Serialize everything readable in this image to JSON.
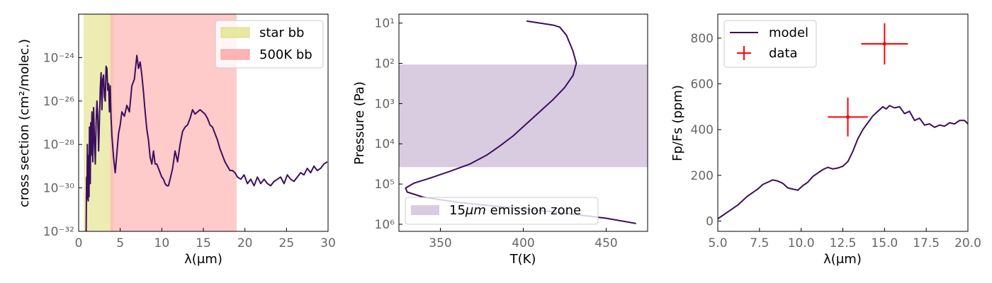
{
  "colors": {
    "line": "#3b0f5e",
    "star_band": "#e8e8a0",
    "bb500_band": "#ffb3b3",
    "emission_zone": "#d9cbe0",
    "data": "#ff0000",
    "tick_label": "#666666"
  },
  "chart_data": [
    {
      "type": "line",
      "xlabel": "λ(μm)",
      "ylabel": "cross section (cm²/molec.)",
      "xlim": [
        0,
        30
      ],
      "ylim": [
        1e-32,
        1e-22
      ],
      "yscale": "log",
      "xticks": [
        0,
        5,
        10,
        15,
        20,
        25,
        30
      ],
      "xtick_labels": [
        "0",
        "5",
        "10",
        "15",
        "20",
        "25",
        "30"
      ],
      "yticks": [
        -32,
        -30,
        -28,
        -26,
        -24
      ],
      "ytick_labels": [
        "10⁻³²",
        "10⁻³⁰",
        "10⁻²⁸",
        "10⁻²⁶",
        "10⁻²⁴"
      ],
      "legend_position": "top-right",
      "bands": [
        {
          "name": "star bb",
          "x": [
            0.6,
            4.2
          ],
          "color": "#e8e8a0"
        },
        {
          "name": "500K bb",
          "x": [
            3.8,
            19.0
          ],
          "color": "#ffb3b3"
        }
      ],
      "series": [
        {
          "log10_y": true,
          "x": [
            0.9,
            0.95,
            1.0,
            1.05,
            1.1,
            1.15,
            1.2,
            1.25,
            1.3,
            1.35,
            1.4,
            1.45,
            1.5,
            1.6,
            1.7,
            1.8,
            1.9,
            2.0,
            2.1,
            2.2,
            2.3,
            2.4,
            2.5,
            2.6,
            2.7,
            2.8,
            2.9,
            3.0,
            3.1,
            3.2,
            3.3,
            3.4,
            3.5,
            3.6,
            3.7,
            3.8,
            3.9,
            4.0,
            4.2,
            4.4,
            4.6,
            4.8,
            5.0,
            5.2,
            5.5,
            5.8,
            6.1,
            6.4,
            6.7,
            7.0,
            7.2,
            7.4,
            7.6,
            7.8,
            8.0,
            8.2,
            8.4,
            8.6,
            8.8,
            9.0,
            9.2,
            9.4,
            9.6,
            9.8,
            10.0,
            10.2,
            10.4,
            10.6,
            10.8,
            11.0,
            11.3,
            11.6,
            11.9,
            12.2,
            12.5,
            12.8,
            13.1,
            13.4,
            13.7,
            14.0,
            14.3,
            14.6,
            14.9,
            15.2,
            15.5,
            15.8,
            16.1,
            16.4,
            16.7,
            17.0,
            17.3,
            17.6,
            17.9,
            18.2,
            18.5,
            18.8,
            19.1,
            19.5,
            19.9,
            20.3,
            20.7,
            21.1,
            21.5,
            21.9,
            22.3,
            22.7,
            23.1,
            23.5,
            23.9,
            24.3,
            24.7,
            25.1,
            25.5,
            25.9,
            26.3,
            26.7,
            27.1,
            27.5,
            27.9,
            28.3,
            28.7,
            29.1,
            29.5,
            29.9
          ],
          "y": [
            -32.0,
            -29.5,
            -30.5,
            -28.0,
            -30.0,
            -30.6,
            -28.5,
            -30.4,
            -27.2,
            -28.2,
            -29.8,
            -27.0,
            -28.5,
            -26.5,
            -28.8,
            -26.3,
            -27.8,
            -28.9,
            -27.0,
            -26.0,
            -26.7,
            -28.3,
            -26.9,
            -25.4,
            -24.7,
            -26.4,
            -25.0,
            -24.8,
            -25.8,
            -26.0,
            -24.4,
            -24.5,
            -25.5,
            -25.2,
            -26.5,
            -25.3,
            -26.8,
            -27.6,
            -28.6,
            -29.3,
            -28.4,
            -27.5,
            -27.1,
            -26.5,
            -26.7,
            -26.2,
            -26.5,
            -25.3,
            -25.0,
            -23.9,
            -24.5,
            -24.2,
            -24.8,
            -25.6,
            -26.5,
            -27.3,
            -27.8,
            -28.6,
            -28.9,
            -28.3,
            -28.9,
            -28.9,
            -29.1,
            -29.3,
            -29.5,
            -29.6,
            -29.8,
            -29.9,
            -29.9,
            -29.6,
            -29.1,
            -28.3,
            -28.8,
            -28.0,
            -27.4,
            -27.2,
            -27.1,
            -26.8,
            -26.4,
            -26.6,
            -26.5,
            -26.4,
            -26.5,
            -26.6,
            -26.8,
            -27.1,
            -27.2,
            -27.5,
            -27.8,
            -28.2,
            -28.5,
            -28.8,
            -29.0,
            -29.2,
            -29.2,
            -29.3,
            -29.5,
            -29.6,
            -29.4,
            -29.8,
            -29.6,
            -29.9,
            -29.5,
            -29.8,
            -29.6,
            -29.8,
            -29.9,
            -29.7,
            -29.6,
            -29.5,
            -29.8,
            -29.4,
            -29.6,
            -29.7,
            -29.5,
            -29.3,
            -29.4,
            -29.1,
            -29.3,
            -29.0,
            -29.2,
            -29.1,
            -28.9,
            -28.8
          ],
          "color": "#3b0f5e"
        }
      ]
    },
    {
      "type": "line",
      "xlabel": "T(K)",
      "ylabel": "Pressure (Pa)",
      "xlim": [
        325,
        475
      ],
      "ylim": [
        1500000.0,
        6
      ],
      "yscale": "log",
      "inverted_y": true,
      "xticks": [
        350,
        400,
        450
      ],
      "xtick_labels": [
        "350",
        "400",
        "450"
      ],
      "yticks": [
        1,
        2,
        3,
        4,
        5,
        6
      ],
      "ytick_labels": [
        "10¹",
        "10²",
        "10³",
        "10⁴",
        "10⁵",
        "10⁶"
      ],
      "legend_position": "bottom",
      "bands": [
        {
          "name": "15μm emission zone",
          "log10_p": [
            2.03,
            4.58
          ],
          "color": "#d9cbe0"
        }
      ],
      "series": [
        {
          "T": [
            402,
            410,
            418,
            422,
            426,
            430,
            432,
            430,
            425,
            418,
            410,
            402,
            394,
            386,
            378,
            368,
            356,
            344,
            334,
            329,
            330,
            340,
            360,
            390,
            420,
            450,
            468
          ],
          "log10_p": [
            0.95,
            1.0,
            1.05,
            1.1,
            1.3,
            1.7,
            2.0,
            2.3,
            2.6,
            2.9,
            3.2,
            3.5,
            3.8,
            4.05,
            4.28,
            4.5,
            4.68,
            4.85,
            4.98,
            5.1,
            5.2,
            5.33,
            5.45,
            5.58,
            5.7,
            5.85,
            5.98
          ],
          "color": "#3b0f5e"
        }
      ]
    },
    {
      "type": "line",
      "xlabel": "λ(μm)",
      "ylabel": "Fp/Fs (ppm)",
      "xlim": [
        5.0,
        20.0
      ],
      "ylim": [
        -45,
        905
      ],
      "xticks": [
        5.0,
        7.5,
        10.0,
        12.5,
        15.0,
        17.5,
        20.0
      ],
      "xtick_labels": [
        "5.0",
        "7.5",
        "10.0",
        "12.5",
        "15.0",
        "17.5",
        "20.0"
      ],
      "yticks": [
        0,
        200,
        400,
        600,
        800
      ],
      "ytick_labels": [
        "0",
        "200",
        "400",
        "600",
        "800"
      ],
      "legend_position": "top-left",
      "series": [
        {
          "name": "model",
          "color": "#3b0f5e",
          "x": [
            5.0,
            5.3,
            5.6,
            5.9,
            6.2,
            6.5,
            6.8,
            7.1,
            7.4,
            7.7,
            8.0,
            8.3,
            8.6,
            8.9,
            9.2,
            9.5,
            9.8,
            10.1,
            10.4,
            10.7,
            11.0,
            11.3,
            11.6,
            11.9,
            12.2,
            12.5,
            12.8,
            13.1,
            13.4,
            13.7,
            14.0,
            14.3,
            14.6,
            14.9,
            15.1,
            15.3,
            15.6,
            15.9,
            16.2,
            16.5,
            16.8,
            17.1,
            17.4,
            17.7,
            18.0,
            18.3,
            18.6,
            18.9,
            19.2,
            19.5,
            19.8,
            20.0
          ],
          "y": [
            10,
            25,
            40,
            55,
            70,
            90,
            110,
            125,
            140,
            160,
            170,
            180,
            175,
            165,
            145,
            140,
            135,
            155,
            170,
            195,
            210,
            225,
            235,
            228,
            232,
            240,
            260,
            305,
            360,
            400,
            430,
            460,
            480,
            500,
            490,
            505,
            495,
            500,
            470,
            480,
            440,
            450,
            420,
            425,
            410,
            420,
            415,
            430,
            425,
            440,
            440,
            425
          ]
        },
        {
          "name": "data",
          "color": "#ff0000",
          "type": "errorbar",
          "x": [
            12.8,
            15.0
          ],
          "y": [
            455,
            775
          ],
          "xerr": [
            1.2,
            1.4
          ],
          "yerr": [
            85,
            90
          ]
        }
      ]
    }
  ],
  "legends": {
    "left": {
      "star_bb": "star bb",
      "bb500": "500K bb"
    },
    "middle": {
      "emission_prefix": "15",
      "emission_italic": "μm",
      "emission_suffix": " emission zone"
    },
    "right": {
      "model": "model",
      "data": "data"
    }
  }
}
